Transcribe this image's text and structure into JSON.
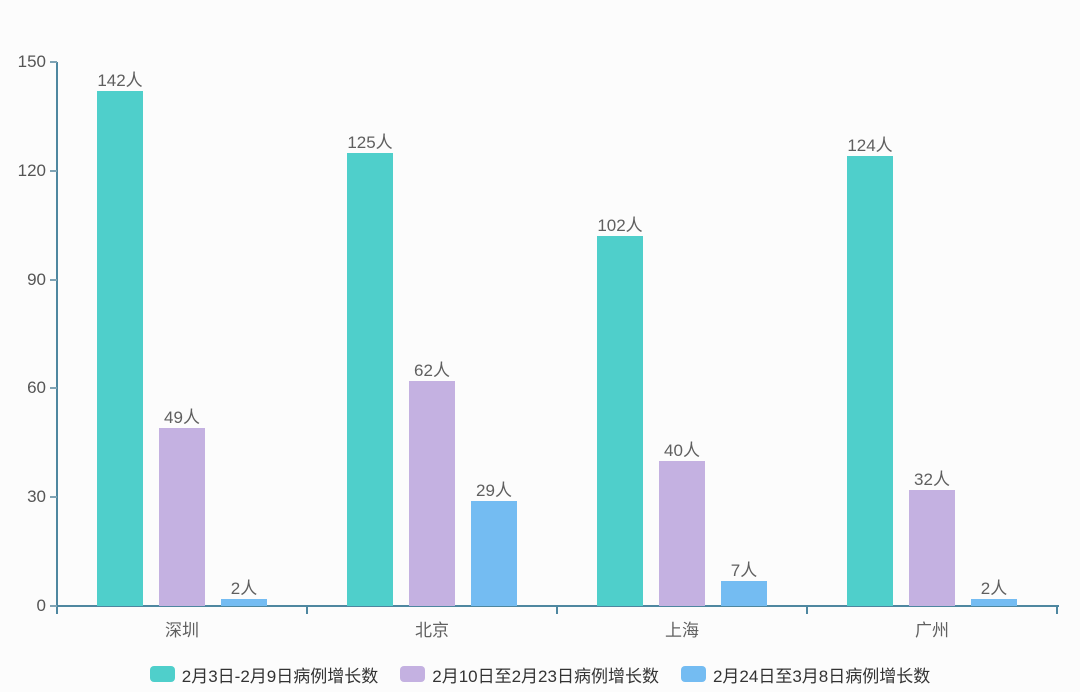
{
  "chart_data": {
    "type": "bar",
    "categories": [
      "深圳",
      "北京",
      "上海",
      "广州"
    ],
    "series": [
      {
        "name": "2月3日-2月9日病例增长数",
        "color": "#4fcfcb",
        "values": [
          142,
          125,
          102,
          124
        ]
      },
      {
        "name": "2月10日至2月23日病例增长数",
        "color": "#c4b1e1",
        "values": [
          49,
          62,
          40,
          32
        ]
      },
      {
        "name": "2月24日至3月8日病例增长数",
        "color": "#74bcf2",
        "values": [
          2,
          29,
          7,
          2
        ]
      }
    ],
    "value_unit": "人",
    "ylim": [
      0,
      150
    ],
    "yticks": [
      0,
      30,
      60,
      90,
      120,
      150
    ],
    "grid": false,
    "legend_position": "bottom"
  },
  "colors": {
    "background": "#fcfcfc",
    "axis": "#4e87a0",
    "y_tick_label": "#555555",
    "value_label": "#5f5f5f",
    "category_label": "#606060",
    "legend_text": "#333333"
  }
}
